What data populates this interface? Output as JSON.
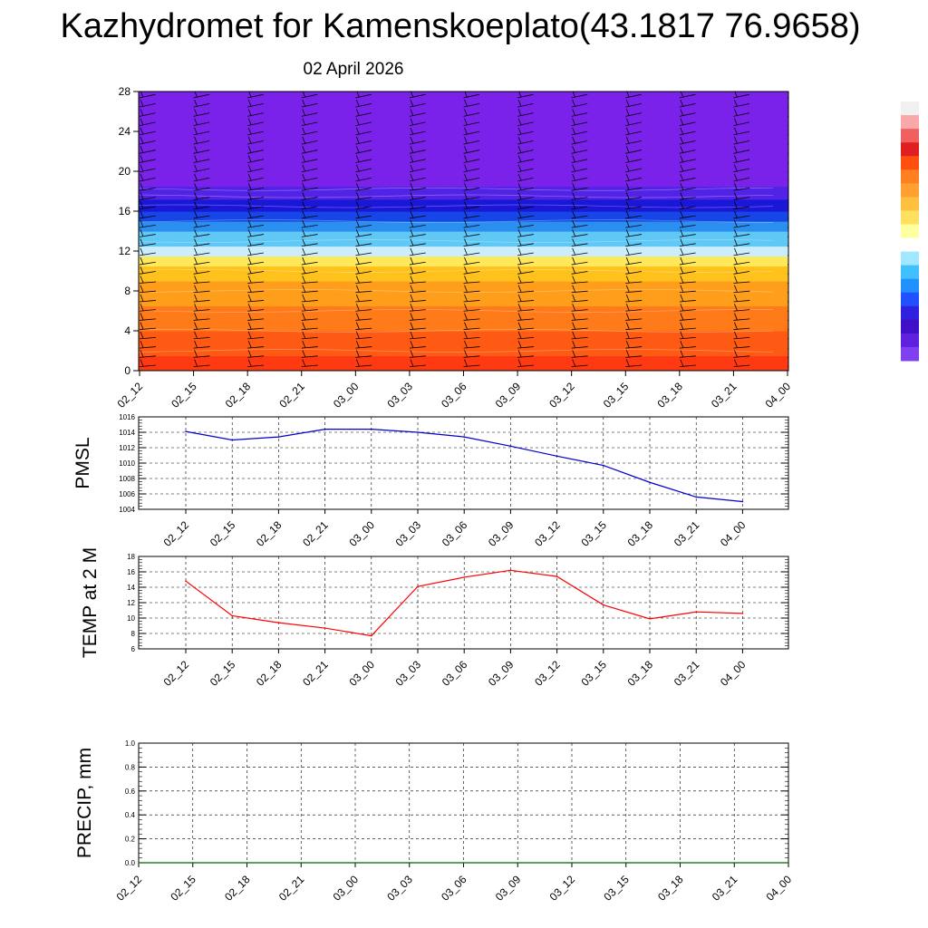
{
  "title": "Kazhydromet for Kamenskoeplato(43.1817 76.9658)",
  "subtitle": "02 April 2026",
  "chart_data": [
    {
      "type": "heatmap",
      "name": "height-time section",
      "x_ticks": [
        "02_12",
        "02_15",
        "02_18",
        "02_21",
        "03_00",
        "03_03",
        "03_06",
        "03_09",
        "03_12",
        "03_15",
        "03_18",
        "03_21",
        "04_00"
      ],
      "y_ticks": [
        0,
        4,
        8,
        12,
        16,
        20,
        24,
        28
      ],
      "ylim": [
        0,
        28
      ],
      "color_bands": [
        {
          "from": 0,
          "to": 1.5,
          "color": "#ff3a12"
        },
        {
          "from": 1.5,
          "to": 4,
          "color": "#ff5a14"
        },
        {
          "from": 4,
          "to": 6.5,
          "color": "#ff7a18"
        },
        {
          "from": 6.5,
          "to": 9,
          "color": "#ff9e1a"
        },
        {
          "from": 9,
          "to": 10.5,
          "color": "#ffc21c"
        },
        {
          "from": 10.5,
          "to": 11.5,
          "color": "#ffe85a"
        },
        {
          "from": 11.5,
          "to": 12.5,
          "color": "#cceefc"
        },
        {
          "from": 12.5,
          "to": 14,
          "color": "#5fc8f5"
        },
        {
          "from": 14,
          "to": 15,
          "color": "#2b8ff0"
        },
        {
          "from": 15,
          "to": 16,
          "color": "#1746e6"
        },
        {
          "from": 16,
          "to": 17.2,
          "color": "#1a17d8"
        },
        {
          "from": 17.2,
          "to": 18.5,
          "color": "#5222e6"
        },
        {
          "from": 18.5,
          "to": 28,
          "color": "#7b22ea"
        }
      ],
      "colorbar": [
        "#f0f0f0",
        "#f8a8a8",
        "#f06060",
        "#e02020",
        "#ff5010",
        "#ff8020",
        "#ffa030",
        "#ffc040",
        "#ffe060",
        "#ffffa0",
        "#ffffff",
        "#a0e8ff",
        "#40c0ff",
        "#2090ff",
        "#2050ff",
        "#3020e0",
        "#4010c8",
        "#6020e0",
        "#8040f0"
      ],
      "wind_barbs": true
    },
    {
      "type": "line",
      "ylabel": "PMSL",
      "categories": [
        "02_12",
        "02_15",
        "02_18",
        "02_21",
        "03_00",
        "03_03",
        "03_06",
        "03_09",
        "03_12",
        "03_15",
        "03_18",
        "03_21",
        "04_00"
      ],
      "series": [
        {
          "color": "#0000cc",
          "values": [
            1014.1,
            1013.0,
            1013.4,
            1014.4,
            1014.4,
            1014.0,
            1013.4,
            1012.2,
            1010.9,
            1009.7,
            1007.5,
            1005.6,
            1005.0
          ]
        }
      ],
      "ylim": [
        1004,
        1016
      ],
      "y_ticks": [
        1004,
        1006,
        1008,
        1010,
        1012,
        1014,
        1016
      ],
      "grid": true
    },
    {
      "type": "line",
      "ylabel": "TEMP at 2 M",
      "categories": [
        "02_12",
        "02_15",
        "02_18",
        "02_21",
        "03_00",
        "03_03",
        "03_06",
        "03_09",
        "03_12",
        "03_15",
        "03_18",
        "03_21",
        "04_00"
      ],
      "series": [
        {
          "color": "#ff0000",
          "values": [
            14.8,
            10.3,
            9.4,
            8.7,
            7.7,
            14.1,
            15.3,
            16.2,
            15.4,
            11.7,
            9.9,
            10.8,
            10.6
          ]
        }
      ],
      "ylim": [
        6,
        18
      ],
      "y_ticks": [
        6,
        8,
        10,
        12,
        14,
        16,
        18
      ],
      "grid": true
    },
    {
      "type": "line",
      "ylabel": "PRECIP, mm",
      "categories": [
        "02_12",
        "02_15",
        "02_18",
        "02_21",
        "03_00",
        "03_03",
        "03_06",
        "03_09",
        "03_12",
        "03_15",
        "03_18",
        "03_21",
        "04_00"
      ],
      "series": [
        {
          "color": "#006400",
          "values": [
            0,
            0,
            0,
            0,
            0,
            0,
            0,
            0,
            0,
            0,
            0,
            0,
            0
          ]
        }
      ],
      "ylim": [
        0,
        1
      ],
      "y_ticks": [
        "0.0",
        "0.2",
        "0.4",
        "0.6",
        "0.8",
        "1.0"
      ],
      "grid": true
    }
  ]
}
